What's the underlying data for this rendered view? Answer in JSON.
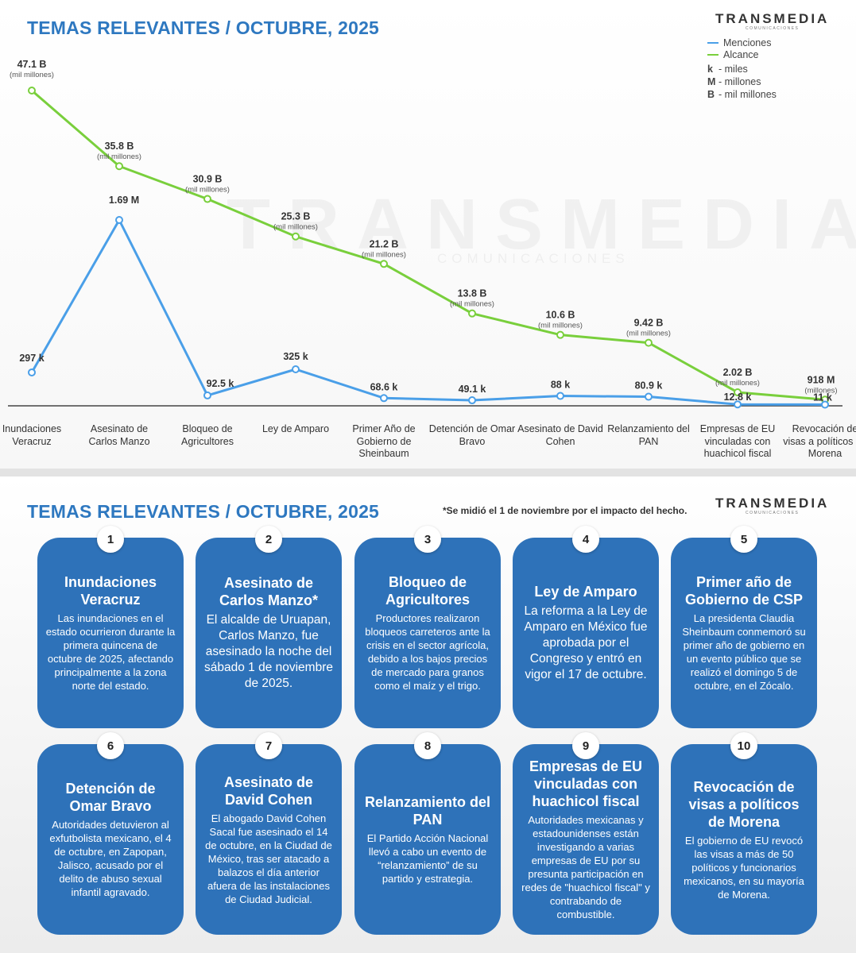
{
  "title": "TEMAS RELEVANTES / OCTUBRE, 2025",
  "brand": {
    "name": "TRANSMEDIA",
    "sub": "COMUNICACIONES"
  },
  "watermark": {
    "name": "TRANSMEDIA",
    "sub": "COMUNICACIONES"
  },
  "legend": {
    "mentions": "Menciones",
    "reach": "Alcance",
    "units": [
      {
        "key": "k",
        "text": "- miles"
      },
      {
        "key": "M",
        "text": "- millones"
      },
      {
        "key": "B",
        "text": "- mil millones"
      }
    ]
  },
  "colors": {
    "mentions": "#4a9fe8",
    "reach": "#79cf3c",
    "title": "#2e78c0",
    "card": "#2e72b9"
  },
  "chart_data": {
    "type": "line",
    "categories": [
      "Inundaciones Veracruz",
      "Asesinato de Carlos Manzo",
      "Bloqueo de Agricultores",
      "Ley de Amparo",
      "Primer Año de Gobierno de Sheinbaum",
      "Detención de Omar Bravo",
      "Asesinato de David Cohen",
      "Relanzamiento del PAN",
      "Empresas de EU vinculadas con huachicol fiscal",
      "Revocación de visas a políticos de Morena"
    ],
    "series": [
      {
        "name": "Alcance",
        "values": [
          47100000000,
          35800000000,
          30900000000,
          25300000000,
          21200000000,
          13800000000,
          10600000000,
          9420000000,
          2020000000,
          918000000
        ],
        "labels": [
          "47.1 B",
          "35.8 B",
          "30.9 B",
          "25.3 B",
          "21.2 B",
          "13.8 B",
          "10.6 B",
          "9.42 B",
          "2.02 B",
          "918 M"
        ],
        "sublabels": [
          "(mil millones)",
          "(mil millones)",
          "(mil millones)",
          "(mil millones)",
          "(mil millones)",
          "(mil millones)",
          "(mil millones)",
          "(mil millones)",
          "(mil millones)",
          "(millones)"
        ]
      },
      {
        "name": "Menciones",
        "values": [
          297000,
          1690000,
          92500,
          325000,
          68600,
          49100,
          88000,
          80900,
          12800,
          11000
        ],
        "labels": [
          "297 k",
          "1.69 M",
          "92.5 k",
          "325 k",
          "68.6 k",
          "49.1 k",
          "88 k",
          "80.9 k",
          "12.8 k",
          "11 k"
        ]
      }
    ]
  },
  "note": "*Se midió el 1 de noviembre por el impacto del hecho.",
  "cards": [
    {
      "num": "1",
      "title": "Inundaciones Veracruz",
      "body": "Las inundaciones en el estado ocurrieron durante la primera quincena de octubre de 2025, afectando principalmente a la zona norte del estado."
    },
    {
      "num": "2",
      "title": "Asesinato de Carlos Manzo*",
      "body": "El alcalde de Uruapan, Carlos Manzo, fue asesinado la noche del sábado 1 de noviembre de 2025."
    },
    {
      "num": "3",
      "title": "Bloqueo de Agricultores",
      "body": "Productores realizaron bloqueos carreteros ante la crisis en el sector agrícola, debido a los bajos precios de mercado para granos como el maíz y el trigo."
    },
    {
      "num": "4",
      "title": "Ley de Amparo",
      "body": "La reforma a la Ley de Amparo en México fue aprobada por el Congreso y entró en vigor el 17 de octubre."
    },
    {
      "num": "5",
      "title": "Primer año de Gobierno de CSP",
      "body": "La presidenta Claudia Sheinbaum conmemoró su primer año de gobierno en un evento público que se realizó el domingo 5 de octubre, en el Zócalo."
    },
    {
      "num": "6",
      "title": "Detención de Omar Bravo",
      "body": "Autoridades detuvieron al exfutbolista mexicano, el 4 de octubre, en Zapopan, Jalisco, acusado por el delito de abuso sexual infantil agravado."
    },
    {
      "num": "7",
      "title": "Asesinato de David Cohen",
      "body": "El abogado David Cohen Sacal fue asesinado el 14 de octubre, en la Ciudad de México, tras ser atacado a balazos el día anterior afuera de las instalaciones de Ciudad Judicial."
    },
    {
      "num": "8",
      "title": "Relanzamiento del PAN",
      "body": "El Partido Acción Nacional llevó a cabo un evento de “relanzamiento” de su partido y estrategia."
    },
    {
      "num": "9",
      "title": "Empresas de EU vinculadas con huachicol fiscal",
      "body": "Autoridades mexicanas y estadounidenses están investigando a varias empresas de EU por su presunta participación en redes de \"huachicol fiscal\" y contrabando de combustible."
    },
    {
      "num": "10",
      "title": "Revocación de visas a políticos de Morena",
      "body": "El gobierno de EU revocó las visas a más de 50 políticos y funcionarios mexicanos, en su mayoría de Morena."
    }
  ]
}
